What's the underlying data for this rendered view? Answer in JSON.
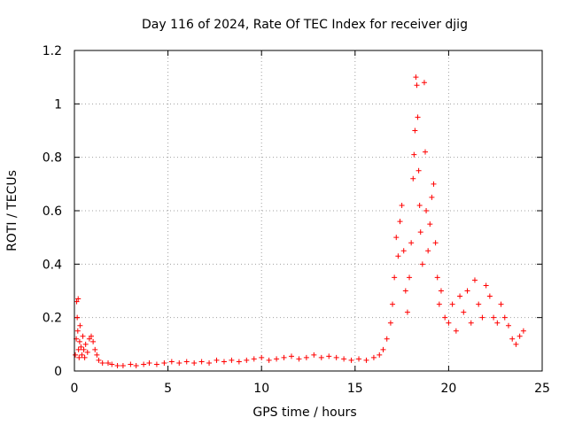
{
  "chart_data": {
    "type": "scatter",
    "title": "Day 116 of 2024, Rate Of TEC Index for receiver djig",
    "xlabel": "GPS time / hours",
    "ylabel": "ROTI / TECUs",
    "xlim": [
      0,
      25
    ],
    "ylim": [
      0,
      1.2
    ],
    "xticks": [
      0,
      5,
      10,
      15,
      20,
      25
    ],
    "xtick_labels": [
      "0",
      "5",
      "10",
      "15",
      "20",
      "25"
    ],
    "yticks": [
      0,
      0.2,
      0.4,
      0.6,
      0.8,
      1.0,
      1.2
    ],
    "ytick_labels": [
      "0",
      "0.2",
      "0.4",
      "0.6",
      "0.8",
      "1",
      "1.2"
    ],
    "grid": true,
    "marker": "+",
    "color": "#ff0000",
    "series": [
      {
        "name": "ROTI",
        "points": [
          [
            0.05,
            0.06
          ],
          [
            0.1,
            0.12
          ],
          [
            0.12,
            0.26
          ],
          [
            0.15,
            0.2
          ],
          [
            0.18,
            0.15
          ],
          [
            0.2,
            0.27
          ],
          [
            0.22,
            0.08
          ],
          [
            0.25,
            0.05
          ],
          [
            0.28,
            0.11
          ],
          [
            0.3,
            0.17
          ],
          [
            0.35,
            0.09
          ],
          [
            0.4,
            0.06
          ],
          [
            0.45,
            0.13
          ],
          [
            0.5,
            0.08
          ],
          [
            0.55,
            0.05
          ],
          [
            0.6,
            0.1
          ],
          [
            0.7,
            0.07
          ],
          [
            0.8,
            0.12
          ],
          [
            0.9,
            0.13
          ],
          [
            1.0,
            0.11
          ],
          [
            1.1,
            0.08
          ],
          [
            1.2,
            0.06
          ],
          [
            1.3,
            0.04
          ],
          [
            1.5,
            0.03
          ],
          [
            1.8,
            0.03
          ],
          [
            2.0,
            0.025
          ],
          [
            2.3,
            0.02
          ],
          [
            2.6,
            0.02
          ],
          [
            3.0,
            0.025
          ],
          [
            3.3,
            0.02
          ],
          [
            3.7,
            0.025
          ],
          [
            4.0,
            0.03
          ],
          [
            4.4,
            0.025
          ],
          [
            4.8,
            0.03
          ],
          [
            5.2,
            0.035
          ],
          [
            5.6,
            0.03
          ],
          [
            6.0,
            0.035
          ],
          [
            6.4,
            0.03
          ],
          [
            6.8,
            0.035
          ],
          [
            7.2,
            0.03
          ],
          [
            7.6,
            0.04
          ],
          [
            8.0,
            0.035
          ],
          [
            8.4,
            0.04
          ],
          [
            8.8,
            0.035
          ],
          [
            9.2,
            0.04
          ],
          [
            9.6,
            0.045
          ],
          [
            10.0,
            0.05
          ],
          [
            10.4,
            0.04
          ],
          [
            10.8,
            0.045
          ],
          [
            11.2,
            0.05
          ],
          [
            11.6,
            0.055
          ],
          [
            12.0,
            0.045
          ],
          [
            12.4,
            0.05
          ],
          [
            12.8,
            0.06
          ],
          [
            13.2,
            0.05
          ],
          [
            13.6,
            0.055
          ],
          [
            14.0,
            0.05
          ],
          [
            14.4,
            0.045
          ],
          [
            14.8,
            0.04
          ],
          [
            15.2,
            0.045
          ],
          [
            15.6,
            0.04
          ],
          [
            16.0,
            0.05
          ],
          [
            16.3,
            0.06
          ],
          [
            16.5,
            0.08
          ],
          [
            16.7,
            0.12
          ],
          [
            16.9,
            0.18
          ],
          [
            17.0,
            0.25
          ],
          [
            17.1,
            0.35
          ],
          [
            17.2,
            0.5
          ],
          [
            17.3,
            0.43
          ],
          [
            17.4,
            0.56
          ],
          [
            17.5,
            0.62
          ],
          [
            17.6,
            0.45
          ],
          [
            17.7,
            0.3
          ],
          [
            17.8,
            0.22
          ],
          [
            17.9,
            0.35
          ],
          [
            18.0,
            0.48
          ],
          [
            18.1,
            0.72
          ],
          [
            18.15,
            0.81
          ],
          [
            18.2,
            0.9
          ],
          [
            18.25,
            1.1
          ],
          [
            18.3,
            1.07
          ],
          [
            18.35,
            0.95
          ],
          [
            18.4,
            0.75
          ],
          [
            18.45,
            0.62
          ],
          [
            18.5,
            0.52
          ],
          [
            18.6,
            0.4
          ],
          [
            18.7,
            1.08
          ],
          [
            18.75,
            0.82
          ],
          [
            18.8,
            0.6
          ],
          [
            18.9,
            0.45
          ],
          [
            19.0,
            0.55
          ],
          [
            19.1,
            0.65
          ],
          [
            19.2,
            0.7
          ],
          [
            19.3,
            0.48
          ],
          [
            19.4,
            0.35
          ],
          [
            19.5,
            0.25
          ],
          [
            19.6,
            0.3
          ],
          [
            19.8,
            0.2
          ],
          [
            20.0,
            0.18
          ],
          [
            20.2,
            0.25
          ],
          [
            20.4,
            0.15
          ],
          [
            20.6,
            0.28
          ],
          [
            20.8,
            0.22
          ],
          [
            21.0,
            0.3
          ],
          [
            21.2,
            0.18
          ],
          [
            21.4,
            0.34
          ],
          [
            21.6,
            0.25
          ],
          [
            21.8,
            0.2
          ],
          [
            22.0,
            0.32
          ],
          [
            22.2,
            0.28
          ],
          [
            22.4,
            0.2
          ],
          [
            22.6,
            0.18
          ],
          [
            22.8,
            0.25
          ],
          [
            23.0,
            0.2
          ],
          [
            23.2,
            0.17
          ],
          [
            23.4,
            0.12
          ],
          [
            23.6,
            0.1
          ],
          [
            23.8,
            0.13
          ],
          [
            24.0,
            0.15
          ]
        ]
      }
    ]
  }
}
